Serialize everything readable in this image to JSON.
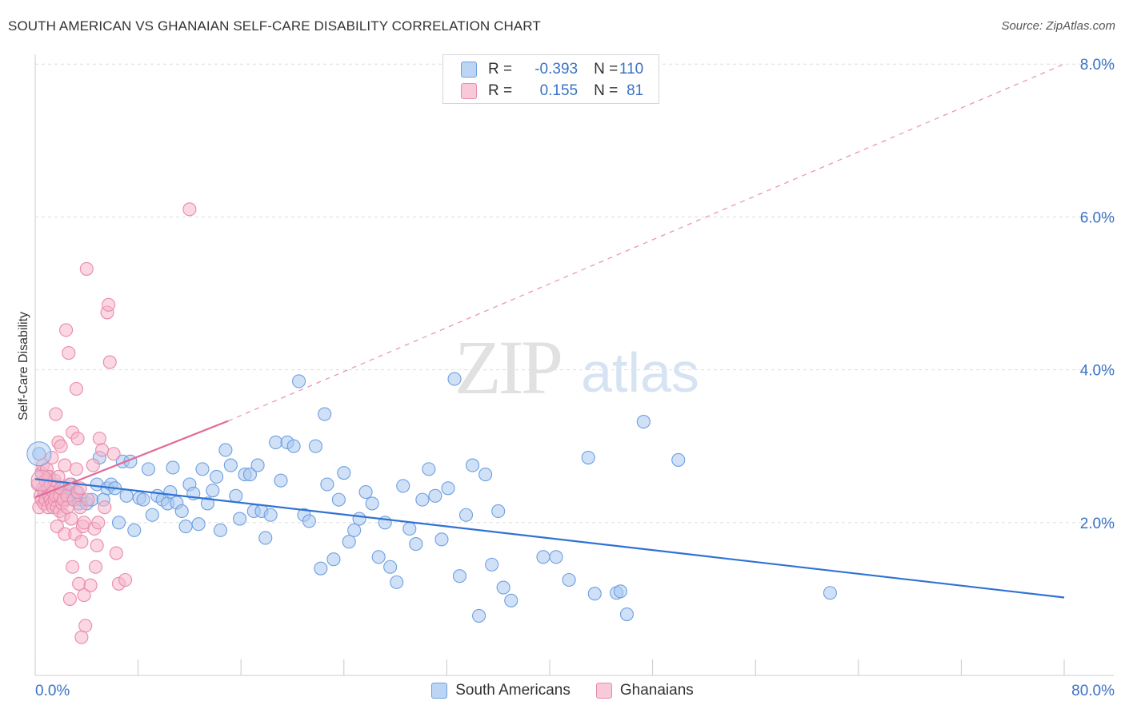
{
  "title": "SOUTH AMERICAN VS GHANAIAN SELF-CARE DISABILITY CORRELATION CHART",
  "source": "Source: ZipAtlas.com",
  "watermark": {
    "zip": "ZIP",
    "atlas": "atlas"
  },
  "colors": {
    "blue_fill": "#a9c8f0",
    "blue_stroke": "#6d9fe0",
    "blue_line": "#2f72d4",
    "pink_fill": "#f5b6ca",
    "pink_stroke": "#e98aaa",
    "pink_line": "#e26a97",
    "axis_text": "#3a72c6",
    "grid": "#dddddd"
  },
  "legend": {
    "r_label": "R =",
    "n_label": "N =",
    "entries": [
      {
        "name": "South Americans",
        "r": "-0.393",
        "n": "110"
      },
      {
        "name": "Ghanaians",
        "r": "0.155",
        "n": "81"
      }
    ]
  },
  "chart_data": {
    "type": "scatter",
    "title": "SOUTH AMERICAN VS GHANAIAN SELF-CARE DISABILITY CORRELATION CHART",
    "xlabel": "",
    "ylabel": "Self-Care Disability",
    "xlim": [
      0,
      80
    ],
    "ylim": [
      0,
      8.3
    ],
    "x_tick_labels": [
      "0.0%",
      "80.0%"
    ],
    "y_ticks": [
      2,
      4,
      6,
      8
    ],
    "y_tick_labels": [
      "2.0%",
      "4.0%",
      "6.0%",
      "8.0%"
    ],
    "series": [
      {
        "name": "South Americans",
        "r": -0.393,
        "n": 110,
        "trend": {
          "x0": 0,
          "y0": 2.57,
          "x1": 80,
          "y1": 1.02
        },
        "points": [
          [
            0.3,
            2.9
          ],
          [
            0.5,
            2.65
          ],
          [
            0.6,
            2.45
          ],
          [
            0.8,
            2.55
          ],
          [
            0.9,
            2.35
          ],
          [
            1.0,
            2.6
          ],
          [
            1.1,
            2.3
          ],
          [
            1.3,
            2.4
          ],
          [
            1.5,
            2.5
          ],
          [
            1.6,
            2.3
          ],
          [
            1.8,
            2.4
          ],
          [
            2.0,
            2.35
          ],
          [
            2.2,
            2.45
          ],
          [
            2.4,
            2.3
          ],
          [
            2.6,
            2.4
          ],
          [
            2.8,
            2.5
          ],
          [
            3.0,
            2.3
          ],
          [
            3.2,
            2.4
          ],
          [
            3.4,
            2.25
          ],
          [
            3.6,
            2.3
          ],
          [
            4.0,
            2.25
          ],
          [
            4.4,
            2.3
          ],
          [
            4.8,
            2.5
          ],
          [
            5.0,
            2.85
          ],
          [
            5.3,
            2.3
          ],
          [
            5.6,
            2.45
          ],
          [
            5.9,
            2.5
          ],
          [
            6.2,
            2.45
          ],
          [
            6.5,
            2.0
          ],
          [
            6.8,
            2.8
          ],
          [
            7.1,
            2.35
          ],
          [
            7.4,
            2.8
          ],
          [
            7.7,
            1.9
          ],
          [
            8.1,
            2.32
          ],
          [
            8.4,
            2.3
          ],
          [
            8.8,
            2.7
          ],
          [
            9.1,
            2.1
          ],
          [
            9.5,
            2.35
          ],
          [
            9.9,
            2.3
          ],
          [
            10.3,
            2.25
          ],
          [
            10.5,
            2.4
          ],
          [
            10.7,
            2.72
          ],
          [
            11.0,
            2.26
          ],
          [
            11.4,
            2.15
          ],
          [
            11.7,
            1.95
          ],
          [
            12.0,
            2.5
          ],
          [
            12.3,
            2.38
          ],
          [
            12.7,
            1.98
          ],
          [
            13.0,
            2.7
          ],
          [
            13.4,
            2.25
          ],
          [
            13.8,
            2.42
          ],
          [
            14.1,
            2.6
          ],
          [
            14.4,
            1.9
          ],
          [
            14.8,
            2.95
          ],
          [
            15.2,
            2.75
          ],
          [
            15.6,
            2.35
          ],
          [
            15.9,
            2.05
          ],
          [
            16.3,
            2.63
          ],
          [
            16.7,
            2.63
          ],
          [
            17.0,
            2.15
          ],
          [
            17.3,
            2.75
          ],
          [
            17.6,
            2.15
          ],
          [
            17.9,
            1.8
          ],
          [
            18.3,
            2.1
          ],
          [
            18.7,
            3.05
          ],
          [
            19.1,
            2.55
          ],
          [
            19.6,
            3.05
          ],
          [
            20.1,
            3.0
          ],
          [
            20.5,
            3.85
          ],
          [
            20.9,
            2.1
          ],
          [
            21.3,
            2.02
          ],
          [
            21.8,
            3.0
          ],
          [
            22.2,
            1.4
          ],
          [
            22.5,
            3.42
          ],
          [
            22.7,
            2.5
          ],
          [
            23.2,
            1.52
          ],
          [
            23.6,
            2.3
          ],
          [
            24.0,
            2.65
          ],
          [
            24.4,
            1.75
          ],
          [
            24.8,
            1.9
          ],
          [
            25.2,
            2.05
          ],
          [
            25.7,
            2.4
          ],
          [
            26.2,
            2.25
          ],
          [
            26.7,
            1.55
          ],
          [
            27.2,
            2.0
          ],
          [
            27.6,
            1.42
          ],
          [
            28.1,
            1.22
          ],
          [
            28.6,
            2.48
          ],
          [
            29.1,
            1.92
          ],
          [
            29.6,
            1.72
          ],
          [
            30.1,
            2.3
          ],
          [
            30.6,
            2.7
          ],
          [
            31.1,
            2.35
          ],
          [
            31.6,
            1.78
          ],
          [
            32.1,
            2.45
          ],
          [
            32.6,
            3.88
          ],
          [
            33.0,
            1.3
          ],
          [
            33.5,
            2.1
          ],
          [
            34.0,
            2.75
          ],
          [
            34.5,
            0.78
          ],
          [
            35.0,
            2.63
          ],
          [
            35.5,
            1.45
          ],
          [
            36.0,
            2.15
          ],
          [
            36.4,
            1.15
          ],
          [
            37.0,
            0.98
          ],
          [
            39.5,
            1.55
          ],
          [
            40.5,
            1.55
          ],
          [
            41.5,
            1.25
          ],
          [
            43.0,
            2.85
          ],
          [
            43.5,
            1.07
          ],
          [
            45.2,
            1.08
          ],
          [
            45.5,
            1.1
          ],
          [
            46.0,
            0.8
          ],
          [
            47.3,
            3.32
          ],
          [
            50.0,
            2.82
          ],
          [
            61.8,
            1.08
          ]
        ]
      },
      {
        "name": "Ghanaians",
        "r": 0.155,
        "n": 81,
        "trend": {
          "x0": 0,
          "y0": 2.33,
          "x1": 15,
          "y1": 3.33,
          "dash_to": {
            "x": 80,
            "y": 8.0
          }
        },
        "points": [
          [
            0.2,
            2.5
          ],
          [
            0.3,
            2.2
          ],
          [
            0.4,
            2.35
          ],
          [
            0.5,
            2.65
          ],
          [
            0.5,
            2.3
          ],
          [
            0.6,
            2.75
          ],
          [
            0.7,
            2.4
          ],
          [
            0.7,
            2.25
          ],
          [
            0.8,
            2.55
          ],
          [
            0.8,
            2.3
          ],
          [
            0.9,
            2.7
          ],
          [
            1.0,
            2.45
          ],
          [
            1.0,
            2.2
          ],
          [
            1.1,
            2.35
          ],
          [
            1.1,
            2.6
          ],
          [
            1.2,
            2.3
          ],
          [
            1.2,
            2.5
          ],
          [
            1.3,
            2.25
          ],
          [
            1.3,
            2.85
          ],
          [
            1.4,
            2.4
          ],
          [
            1.4,
            2.2
          ],
          [
            1.5,
            2.3
          ],
          [
            1.5,
            2.55
          ],
          [
            1.6,
            3.42
          ],
          [
            1.6,
            2.35
          ],
          [
            1.7,
            2.2
          ],
          [
            1.7,
            1.95
          ],
          [
            1.8,
            3.05
          ],
          [
            1.8,
            2.6
          ],
          [
            1.9,
            2.35
          ],
          [
            1.9,
            2.15
          ],
          [
            2.0,
            3.0
          ],
          [
            2.0,
            2.45
          ],
          [
            2.1,
            2.25
          ],
          [
            2.2,
            2.3
          ],
          [
            2.2,
            2.1
          ],
          [
            2.3,
            2.75
          ],
          [
            2.3,
            1.85
          ],
          [
            2.4,
            4.52
          ],
          [
            2.5,
            2.35
          ],
          [
            2.5,
            2.2
          ],
          [
            2.6,
            4.22
          ],
          [
            2.7,
            2.5
          ],
          [
            2.7,
            1.0
          ],
          [
            2.8,
            2.05
          ],
          [
            2.9,
            1.42
          ],
          [
            2.9,
            3.18
          ],
          [
            3.0,
            2.3
          ],
          [
            3.1,
            1.85
          ],
          [
            3.2,
            3.75
          ],
          [
            3.2,
            2.7
          ],
          [
            3.3,
            3.1
          ],
          [
            3.3,
            2.4
          ],
          [
            3.4,
            1.2
          ],
          [
            3.5,
            2.2
          ],
          [
            3.5,
            2.45
          ],
          [
            3.6,
            1.75
          ],
          [
            3.6,
            0.5
          ],
          [
            3.7,
            1.95
          ],
          [
            3.8,
            2.0
          ],
          [
            3.8,
            1.05
          ],
          [
            3.9,
            0.65
          ],
          [
            4.0,
            5.32
          ],
          [
            4.1,
            2.3
          ],
          [
            4.3,
            1.18
          ],
          [
            4.5,
            2.75
          ],
          [
            4.6,
            1.92
          ],
          [
            4.7,
            1.42
          ],
          [
            4.8,
            1.7
          ],
          [
            4.9,
            2.0
          ],
          [
            5.0,
            3.1
          ],
          [
            5.2,
            2.95
          ],
          [
            5.4,
            2.2
          ],
          [
            5.6,
            4.75
          ],
          [
            5.7,
            4.85
          ],
          [
            5.8,
            4.1
          ],
          [
            6.1,
            2.9
          ],
          [
            6.3,
            1.6
          ],
          [
            6.5,
            1.2
          ],
          [
            7.0,
            1.25
          ],
          [
            12.0,
            6.1
          ]
        ]
      }
    ]
  }
}
